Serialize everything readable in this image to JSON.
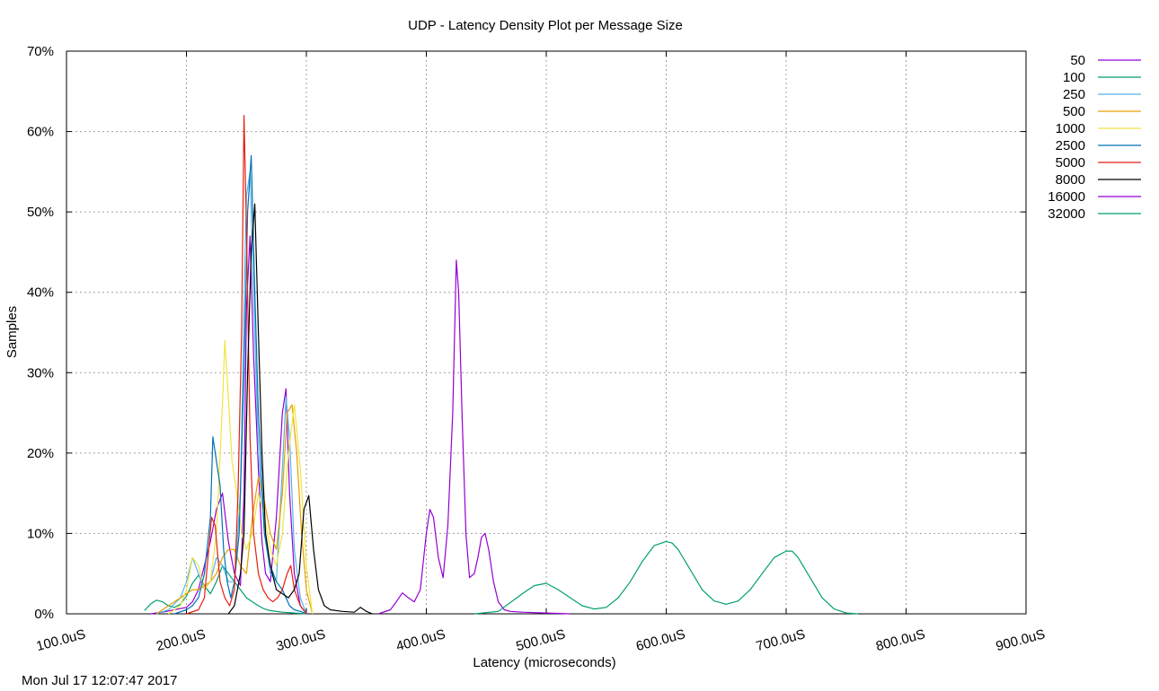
{
  "footer": {
    "timestamp": "Mon Jul 17 12:07:47 2017"
  },
  "chart_data": {
    "type": "line",
    "title": "UDP - Latency Density Plot per Message Size",
    "xlabel": "Latency (microseconds)",
    "ylabel": "Samples",
    "xlim": [
      100,
      900
    ],
    "ylim": [
      0,
      70
    ],
    "x_ticks": [
      100,
      200,
      300,
      400,
      500,
      600,
      700,
      800,
      900
    ],
    "x_tick_labels": [
      "100.0uS",
      "200.0uS",
      "300.0uS",
      "400.0uS",
      "500.0uS",
      "600.0uS",
      "700.0uS",
      "800.0uS",
      "900.0uS"
    ],
    "y_ticks": [
      0,
      10,
      20,
      30,
      40,
      50,
      60,
      70
    ],
    "y_tick_labels": [
      "0%",
      "10%",
      "20%",
      "30%",
      "40%",
      "50%",
      "60%",
      "70%"
    ],
    "grid": true,
    "legend_position": "right-outside-top",
    "series": [
      {
        "name": "50",
        "color": "#9400d3",
        "x": [
          170,
          180,
          190,
          200,
          205,
          210,
          215,
          220,
          225,
          230,
          235,
          240,
          245,
          248,
          250,
          253,
          256,
          260,
          263,
          266,
          270,
          275,
          280,
          283,
          286,
          290,
          295,
          300
        ],
        "y": [
          0,
          0.2,
          0.5,
          0.8,
          1.5,
          3,
          6,
          9,
          13,
          15,
          9,
          5,
          3.5,
          15,
          38,
          47,
          32,
          18,
          9,
          5,
          4,
          12,
          25,
          28,
          15,
          5,
          1,
          0
        ]
      },
      {
        "name": "100",
        "color": "#009e73",
        "x": [
          165,
          170,
          175,
          180,
          185,
          190,
          195,
          200,
          205,
          210,
          215,
          220,
          225,
          230,
          235,
          240,
          245,
          250,
          255,
          260,
          265,
          270,
          280,
          290,
          300
        ],
        "y": [
          0.4,
          1.2,
          1.7,
          1.5,
          1,
          0.8,
          1.2,
          2.2,
          3.8,
          4.8,
          3.5,
          2.5,
          4,
          6,
          5,
          4,
          3,
          2,
          1.5,
          1,
          0.6,
          0.4,
          0.2,
          0.1,
          0
        ]
      },
      {
        "name": "250",
        "color": "#56b4e9",
        "x": [
          175,
          185,
          195,
          200,
          205,
          210,
          215,
          220,
          225,
          230,
          235,
          240,
          245,
          248,
          250,
          253,
          256,
          260,
          265,
          270,
          275,
          280,
          283,
          286,
          290,
          295,
          300
        ],
        "y": [
          0,
          0.5,
          2,
          4,
          7,
          5,
          3,
          4,
          7,
          6,
          4,
          4,
          15,
          38,
          52,
          55,
          40,
          20,
          10,
          5,
          4,
          18,
          27,
          22,
          8,
          2,
          0
        ]
      },
      {
        "name": "500",
        "color": "#e69f00",
        "x": [
          175,
          185,
          195,
          200,
          205,
          210,
          215,
          220,
          225,
          230,
          235,
          240,
          245,
          250,
          255,
          260,
          265,
          270,
          275,
          280,
          284,
          288,
          292,
          296,
          300,
          305
        ],
        "y": [
          0,
          1,
          2,
          2.5,
          3,
          3,
          3.5,
          4,
          5,
          7,
          8,
          8,
          6,
          5,
          12,
          17,
          14,
          10,
          8,
          15,
          25,
          26,
          20,
          10,
          3,
          0
        ]
      },
      {
        "name": "1000",
        "color": "#f0e442",
        "x": [
          185,
          195,
          200,
          205,
          210,
          215,
          220,
          225,
          230,
          232,
          235,
          238,
          242,
          246,
          250,
          255,
          260,
          265,
          270,
          275,
          280,
          285,
          290,
          295,
          300,
          305
        ],
        "y": [
          0,
          1,
          3,
          7,
          6,
          3,
          4,
          10,
          26,
          34,
          27,
          19,
          15,
          10,
          8,
          10,
          15,
          12,
          8,
          6,
          10,
          20,
          26,
          18,
          6,
          0
        ]
      },
      {
        "name": "2500",
        "color": "#0072b2",
        "x": [
          190,
          200,
          205,
          210,
          215,
          220,
          222,
          225,
          228,
          231,
          234,
          237,
          240,
          244,
          248,
          251,
          254,
          257,
          260,
          265,
          270,
          275,
          280,
          283,
          286,
          290,
          295,
          300
        ],
        "y": [
          0,
          0.5,
          1,
          2,
          5,
          12,
          22,
          19,
          16,
          8,
          4,
          2,
          4,
          10,
          30,
          50,
          57,
          40,
          25,
          10,
          6,
          4,
          3,
          2,
          1,
          0.5,
          0.3,
          0
        ]
      },
      {
        "name": "5000",
        "color": "#e51e10",
        "x": [
          200,
          210,
          215,
          218,
          221,
          224,
          228,
          232,
          236,
          240,
          243,
          246,
          248,
          250,
          253,
          256,
          260,
          264,
          268,
          272,
          276,
          280,
          284,
          287,
          290,
          295,
          300
        ],
        "y": [
          0,
          0.5,
          2,
          7,
          12,
          11,
          4,
          2,
          1,
          3,
          15,
          35,
          62,
          48,
          22,
          10,
          5,
          3,
          2,
          1.5,
          2,
          3,
          5,
          6,
          3,
          1,
          0
        ]
      },
      {
        "name": "8000",
        "color": "#000000",
        "x": [
          235,
          240,
          245,
          248,
          251,
          254,
          257,
          260,
          263,
          266,
          270,
          275,
          280,
          285,
          290,
          294,
          298,
          302,
          306,
          310,
          315,
          320,
          330,
          340,
          345,
          350,
          355
        ],
        "y": [
          0,
          1,
          5,
          10,
          30,
          45,
          51,
          35,
          20,
          10,
          6,
          3,
          2.5,
          2,
          3,
          5,
          13,
          14.7,
          8,
          3,
          1,
          0.5,
          0.3,
          0.2,
          0.8,
          0.3,
          0
        ]
      },
      {
        "name": "16000",
        "color": "#9400d3",
        "x": [
          360,
          370,
          375,
          380,
          385,
          390,
          395,
          400,
          403,
          406,
          410,
          414,
          418,
          422,
          425,
          427,
          430,
          433,
          436,
          440,
          443,
          446,
          449,
          452,
          456,
          460,
          465,
          470,
          480,
          500,
          520
        ],
        "y": [
          0,
          0.5,
          1.5,
          2.6,
          2,
          1.5,
          3,
          10,
          13,
          12,
          7,
          4.5,
          11,
          25,
          44,
          40,
          24,
          10,
          4.5,
          5,
          7,
          9.5,
          10,
          8,
          4,
          1.5,
          0.5,
          0.3,
          0.2,
          0.1,
          0
        ]
      },
      {
        "name": "32000",
        "color": "#009e73",
        "x": [
          440,
          460,
          480,
          490,
          500,
          510,
          520,
          530,
          540,
          550,
          560,
          570,
          580,
          590,
          600,
          605,
          610,
          620,
          630,
          640,
          650,
          660,
          670,
          680,
          690,
          700,
          705,
          710,
          720,
          730,
          740,
          750,
          760
        ],
        "y": [
          0,
          0.3,
          2.5,
          3.5,
          3.8,
          3,
          2,
          1,
          0.6,
          0.8,
          2,
          4,
          6.5,
          8.5,
          9,
          8.8,
          8,
          5.5,
          3,
          1.6,
          1.2,
          1.6,
          3,
          5,
          7,
          7.8,
          7.8,
          7,
          4.5,
          2,
          0.6,
          0.1,
          0
        ]
      }
    ]
  }
}
